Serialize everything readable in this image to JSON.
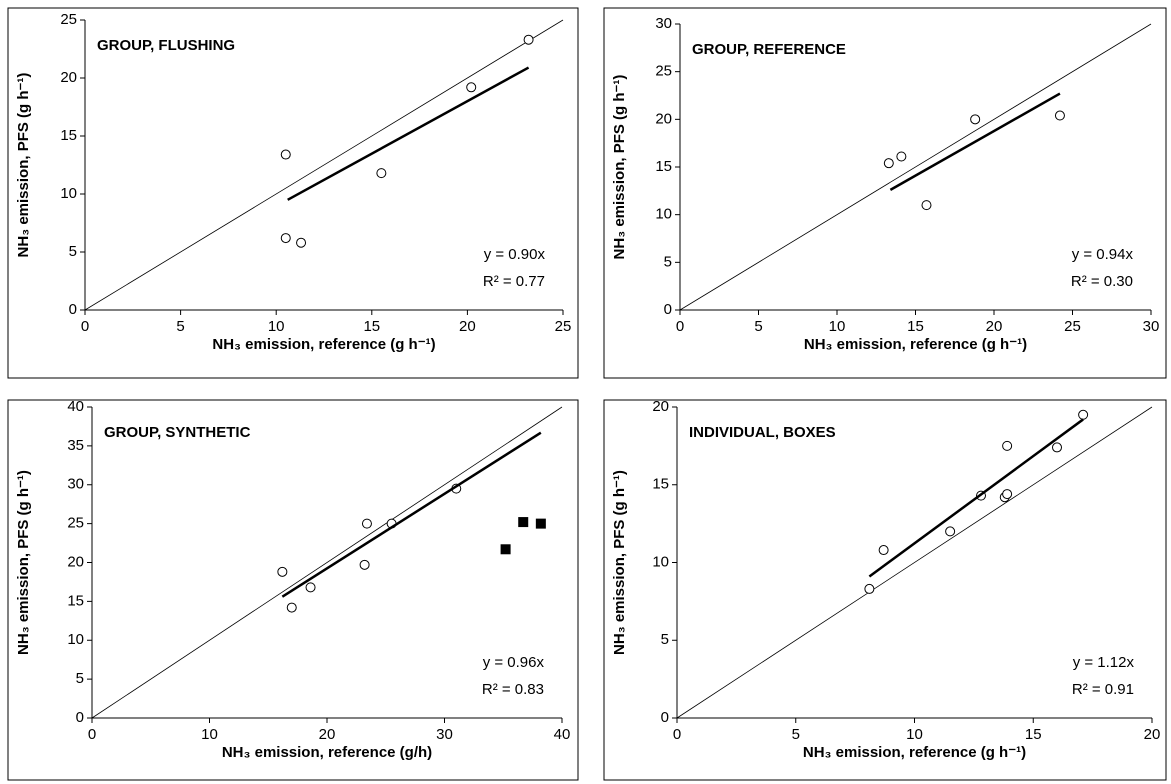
{
  "chart_data": [
    {
      "type": "scatter",
      "title": "GROUP, FLUSHING",
      "x_label": "NH₃ emission, reference (g h⁻¹)",
      "y_label": "NH₃ emission, PFS (g h⁻¹)",
      "annotations": [
        "y = 0.90x",
        "R² = 0.77"
      ],
      "xlim": [
        0,
        25
      ],
      "ylim": [
        0,
        25
      ],
      "xticks": [
        0,
        5,
        10,
        15,
        20,
        25
      ],
      "yticks": [
        0,
        5,
        10,
        15,
        20,
        25
      ],
      "identity_line": true,
      "series": [
        {
          "marker": "circle",
          "color": "#000000",
          "x": [
            10.5,
            10.5,
            11.3,
            15.5,
            20.2,
            23.2
          ],
          "values": [
            13.4,
            6.2,
            5.8,
            11.8,
            19.2,
            23.3
          ]
        },
        {
          "marker": "line",
          "color": "#000000",
          "x": [
            10.6,
            23.2
          ],
          "values": [
            9.5,
            20.9
          ]
        }
      ]
    },
    {
      "type": "scatter",
      "title": "GROUP, REFERENCE",
      "x_label": "NH₃ emission, reference (g h⁻¹)",
      "y_label": "NH₃ emission, PFS (g h⁻¹)",
      "annotations": [
        "y = 0.94x",
        "R² = 0.30"
      ],
      "xlim": [
        0,
        30
      ],
      "ylim": [
        0,
        30
      ],
      "xticks": [
        0,
        5,
        10,
        15,
        20,
        25,
        30
      ],
      "yticks": [
        0,
        5,
        10,
        15,
        20,
        25,
        30
      ],
      "identity_line": true,
      "series": [
        {
          "marker": "circle",
          "color": "#000000",
          "x": [
            13.3,
            14.1,
            15.7,
            18.8,
            24.2
          ],
          "values": [
            15.4,
            16.1,
            11.0,
            20.0,
            20.4
          ]
        },
        {
          "marker": "line",
          "color": "#000000",
          "x": [
            13.4,
            24.2
          ],
          "values": [
            12.6,
            22.7
          ]
        }
      ]
    },
    {
      "type": "scatter",
      "title": "GROUP, SYNTHETIC",
      "x_label": "NH₃ emission, reference (g/h)",
      "y_label": "NH₃ emission, PFS (g h⁻¹)",
      "annotations": [
        "y = 0.96x",
        "R² = 0.83"
      ],
      "xlim": [
        0,
        40
      ],
      "ylim": [
        0,
        40
      ],
      "xticks": [
        0,
        10,
        20,
        30,
        40
      ],
      "yticks": [
        0,
        5,
        10,
        15,
        20,
        25,
        30,
        35,
        40
      ],
      "identity_line": true,
      "series": [
        {
          "marker": "circle",
          "color": "#000000",
          "x": [
            16.2,
            17.0,
            18.6,
            23.2,
            23.4,
            25.5,
            31.0
          ],
          "values": [
            18.8,
            14.2,
            16.8,
            19.7,
            25.0,
            25.0,
            29.5
          ]
        },
        {
          "marker": "square",
          "color": "#000000",
          "x": [
            35.2,
            36.7,
            38.2
          ],
          "values": [
            21.7,
            25.2,
            25.0
          ]
        },
        {
          "marker": "line",
          "color": "#000000",
          "x": [
            16.2,
            38.2
          ],
          "values": [
            15.6,
            36.7
          ]
        }
      ]
    },
    {
      "type": "scatter",
      "title": "INDIVIDUAL, BOXES",
      "x_label": "NH₃ emission, reference (g h⁻¹)",
      "y_label": "NH₃ emission, PFS (g h⁻¹)",
      "annotations": [
        "y = 1.12x",
        "R² = 0.91"
      ],
      "xlim": [
        0,
        20
      ],
      "ylim": [
        0,
        20
      ],
      "xticks": [
        0,
        5,
        10,
        15,
        20
      ],
      "yticks": [
        0,
        5,
        10,
        15,
        20
      ],
      "identity_line": true,
      "series": [
        {
          "marker": "circle",
          "color": "#000000",
          "x": [
            8.1,
            8.7,
            11.5,
            12.8,
            13.8,
            13.9,
            13.9,
            16.0,
            17.1
          ],
          "values": [
            8.3,
            10.8,
            12.0,
            14.3,
            14.2,
            14.4,
            17.5,
            17.4,
            19.5
          ]
        },
        {
          "marker": "line",
          "color": "#000000",
          "x": [
            8.1,
            17.1
          ],
          "values": [
            9.1,
            19.2
          ]
        }
      ]
    }
  ]
}
